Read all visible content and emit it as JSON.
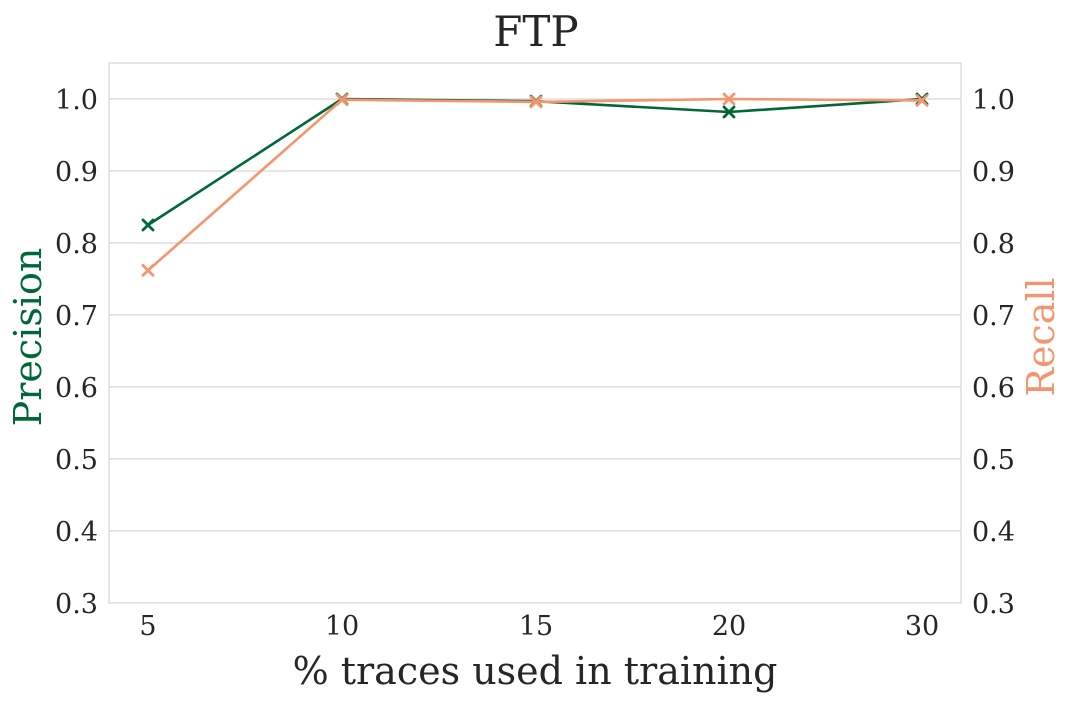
{
  "chart_data": {
    "type": "line",
    "title": "FTP",
    "xlabel": "% traces used in training",
    "ylabel_left": "Precision",
    "ylabel_right": "Recall",
    "categories": [
      "5",
      "10",
      "15",
      "20",
      "30"
    ],
    "ylim": [
      0.3,
      1.05
    ],
    "yticks": [
      "0.3",
      "0.4",
      "0.5",
      "0.6",
      "0.7",
      "0.8",
      "0.9",
      "1.0"
    ],
    "grid": "horizontal",
    "marker": "x",
    "series": [
      {
        "name": "Precision",
        "axis": "left",
        "color": "#006837",
        "values": [
          0.825,
          1.0,
          0.997,
          0.982,
          1.0
        ]
      },
      {
        "name": "Recall",
        "axis": "right",
        "color": "#f4956f",
        "values": [
          0.762,
          0.999,
          0.996,
          1.0,
          0.998
        ]
      }
    ]
  }
}
